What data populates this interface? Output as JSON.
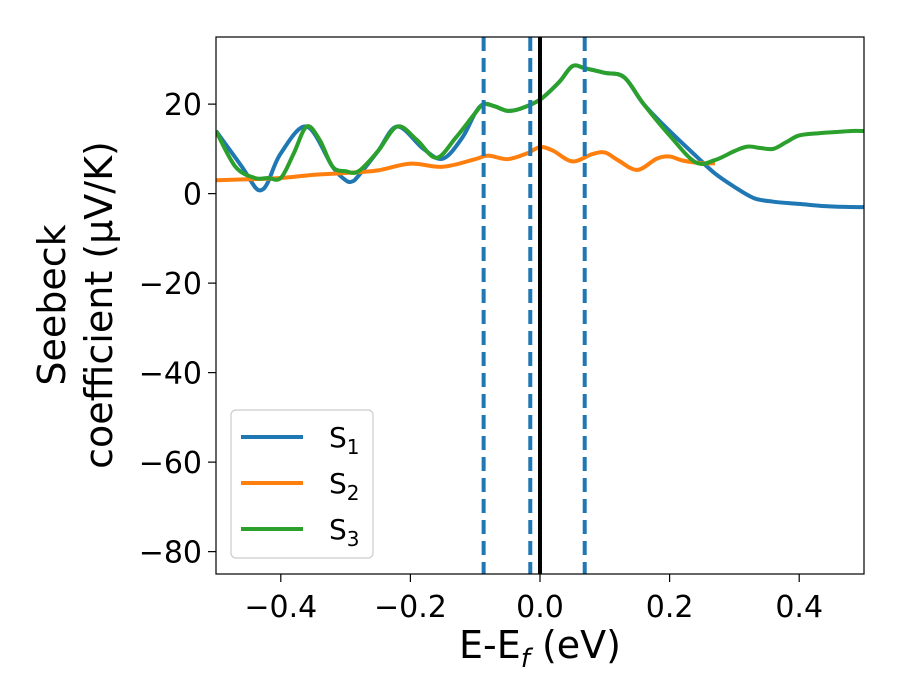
{
  "chart_data": {
    "type": "line",
    "xlim": [
      -0.5,
      0.5
    ],
    "ylim": [
      -85,
      35
    ],
    "xlabel": "E-E_f (eV)",
    "xlabel_parts": {
      "main": "E-E",
      "sub": "f",
      "rest": " (eV)"
    },
    "ylabel_lines": [
      "Seebeck",
      "coefficient  (μV/K)"
    ],
    "xticks": [
      -0.4,
      -0.2,
      0.0,
      0.2,
      0.4
    ],
    "xtick_labels": [
      "−0.4",
      "−0.2",
      "0.0",
      "0.2",
      "0.4"
    ],
    "yticks": [
      -80,
      -60,
      -40,
      -20,
      0,
      20
    ],
    "ytick_labels": [
      "−80",
      "−60",
      "−40",
      "−20",
      "0",
      "20"
    ],
    "grid": false,
    "legend_position": "lower-left",
    "vlines_dashed": {
      "x": [
        -0.087,
        -0.015,
        0.069
      ],
      "color": "#1f77b4"
    },
    "vline_solid": {
      "x": 0.0,
      "color": "#000000"
    },
    "series": [
      {
        "name": "S",
        "subscript": "1",
        "color": "#1f77b4",
        "x": [
          -0.5,
          -0.46,
          -0.44,
          -0.43,
          -0.42,
          -0.4,
          -0.36,
          -0.32,
          -0.3,
          -0.29,
          -0.28,
          -0.25,
          -0.22,
          -0.18,
          -0.15,
          -0.12,
          -0.1,
          -0.087,
          -0.07,
          -0.05,
          -0.03,
          0.0,
          0.03,
          0.05,
          0.07,
          0.1,
          0.13,
          0.16,
          0.2,
          0.24,
          0.27,
          0.3,
          0.33,
          0.36,
          0.4,
          0.44,
          0.48,
          0.5
        ],
        "y": [
          14,
          6,
          1.5,
          0.8,
          2.5,
          9,
          15,
          6,
          3,
          2.7,
          4,
          9.5,
          15,
          10,
          7.8,
          12.5,
          18,
          20,
          19.5,
          18.5,
          19,
          21,
          25,
          28.5,
          28,
          27,
          26,
          20,
          14,
          8.5,
          4.5,
          1.5,
          -1,
          -1.8,
          -2.3,
          -2.8,
          -3,
          -3
        ]
      },
      {
        "name": "S",
        "subscript": "2",
        "color": "#ff7f0e",
        "x": [
          -0.5,
          -0.45,
          -0.4,
          -0.35,
          -0.3,
          -0.25,
          -0.2,
          -0.15,
          -0.1,
          -0.08,
          -0.05,
          -0.02,
          0.0,
          0.02,
          0.05,
          0.08,
          0.1,
          0.12,
          0.15,
          0.18,
          0.2,
          0.22,
          0.25,
          0.27
        ],
        "y": [
          3,
          3.2,
          3.5,
          4.2,
          4.6,
          5.2,
          6.7,
          6.0,
          7.7,
          8.5,
          7.7,
          9.0,
          10.4,
          9.6,
          7.2,
          8.8,
          9.2,
          7.5,
          5.3,
          7.8,
          8.3,
          7.4,
          6.8,
          6.8
        ]
      },
      {
        "name": "S",
        "subscript": "3",
        "color": "#2ca02c",
        "x": [
          -0.5,
          -0.47,
          -0.44,
          -0.42,
          -0.4,
          -0.38,
          -0.36,
          -0.34,
          -0.32,
          -0.3,
          -0.28,
          -0.25,
          -0.22,
          -0.19,
          -0.16,
          -0.13,
          -0.1,
          -0.087,
          -0.07,
          -0.05,
          -0.03,
          0.0,
          0.03,
          0.05,
          0.07,
          0.1,
          0.13,
          0.16,
          0.2,
          0.24,
          0.27,
          0.3,
          0.32,
          0.34,
          0.36,
          0.38,
          0.4,
          0.43,
          0.46,
          0.48,
          0.5
        ],
        "y": [
          14,
          6,
          3.5,
          3.5,
          3.5,
          9,
          15,
          12,
          6,
          5,
          5,
          9.5,
          15,
          12,
          8,
          12.5,
          18,
          20,
          19.5,
          18.5,
          19,
          21,
          25,
          28.5,
          28,
          27,
          26,
          20,
          13,
          7,
          7.5,
          9.5,
          10.5,
          10.2,
          10,
          11.5,
          13,
          13.5,
          13.8,
          14,
          14
        ]
      }
    ]
  }
}
